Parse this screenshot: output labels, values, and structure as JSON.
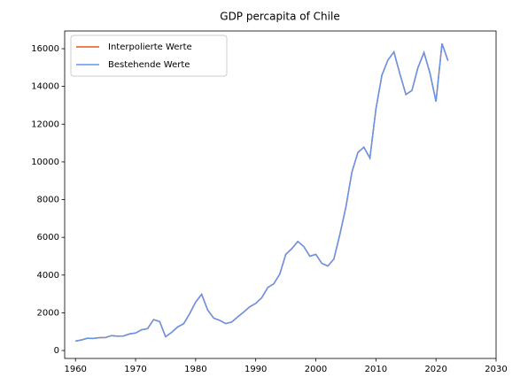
{
  "chart_data": {
    "type": "line",
    "title": "GDP percapita of Chile",
    "x": [
      1960,
      1961,
      1962,
      1963,
      1964,
      1965,
      1966,
      1967,
      1968,
      1969,
      1970,
      1971,
      1972,
      1973,
      1974,
      1975,
      1976,
      1977,
      1978,
      1979,
      1980,
      1981,
      1982,
      1983,
      1984,
      1985,
      1986,
      1987,
      1988,
      1989,
      1990,
      1991,
      1992,
      1993,
      1994,
      1995,
      1996,
      1997,
      1998,
      1999,
      2000,
      2001,
      2002,
      2003,
      2004,
      2005,
      2006,
      2007,
      2008,
      2009,
      2010,
      2011,
      2012,
      2013,
      2014,
      2015,
      2016,
      2017,
      2018,
      2019,
      2020,
      2021,
      2022
    ],
    "series": [
      {
        "name": "Interpolierte Werte",
        "color": "#e8541c",
        "values": [
          500,
          560,
          650,
          640,
          680,
          690,
          790,
          760,
          770,
          880,
          930,
          1100,
          1160,
          1640,
          1540,
          730,
          960,
          1250,
          1420,
          1950,
          2570,
          2980,
          2150,
          1720,
          1600,
          1430,
          1510,
          1780,
          2040,
          2320,
          2500,
          2800,
          3340,
          3540,
          4050,
          5100,
          5400,
          5780,
          5510,
          5000,
          5100,
          4620,
          4480,
          4850,
          6150,
          7600,
          9450,
          10500,
          10780,
          10200,
          12800,
          14600,
          15400,
          15830,
          14650,
          13570,
          13790,
          15000,
          15800,
          14700,
          13200,
          16270,
          15360
        ]
      },
      {
        "name": "Bestehende Werte",
        "color": "#6495ed",
        "values": [
          500,
          560,
          650,
          640,
          680,
          690,
          790,
          760,
          770,
          880,
          930,
          1100,
          1160,
          1640,
          1540,
          730,
          960,
          1250,
          1420,
          1950,
          2570,
          2980,
          2150,
          1720,
          1600,
          1430,
          1510,
          1780,
          2040,
          2320,
          2500,
          2800,
          3340,
          3540,
          4050,
          5100,
          5400,
          5780,
          5510,
          5000,
          5100,
          4620,
          4480,
          4850,
          6150,
          7600,
          9450,
          10500,
          10780,
          10200,
          12800,
          14600,
          15400,
          15830,
          14650,
          13570,
          13790,
          15000,
          15800,
          14700,
          13200,
          16270,
          15360
        ]
      }
    ],
    "xlim": [
      1958.2,
      2030
    ],
    "xticks": [
      1960,
      1970,
      1980,
      1990,
      2000,
      2010,
      2020,
      2030
    ],
    "ylim": [
      -420,
      16940
    ],
    "yticks": [
      0,
      2000,
      4000,
      6000,
      8000,
      10000,
      12000,
      14000,
      16000
    ],
    "legend": "upper left",
    "grid": false
  }
}
